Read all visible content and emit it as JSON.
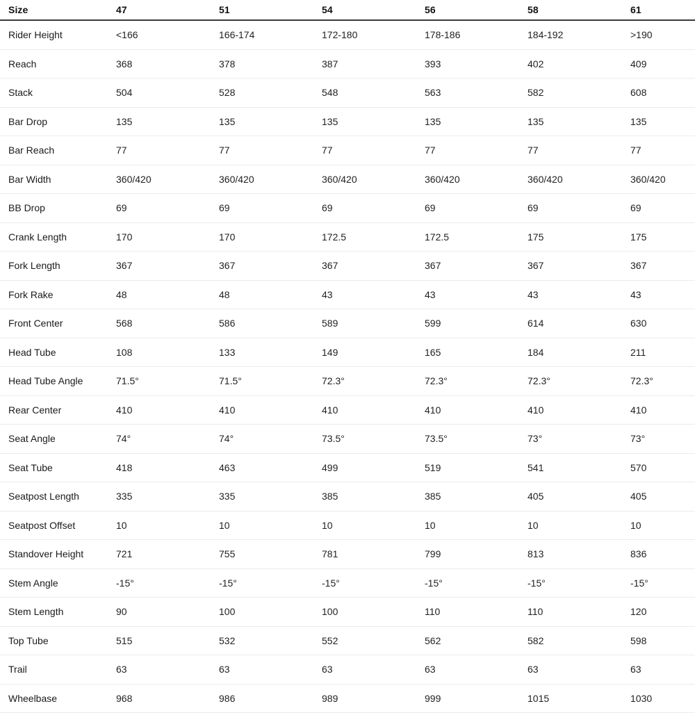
{
  "colors": {
    "background": "#ffffff",
    "text": "#1a1a1a",
    "header_border": "#3b3b3b",
    "row_border": "#ececec"
  },
  "table": {
    "header": {
      "label": "Size",
      "sizes": [
        "47",
        "51",
        "54",
        "56",
        "58",
        "61"
      ]
    },
    "rows": [
      {
        "label": "Rider Height",
        "values": [
          "<166",
          "166-174",
          "172-180",
          "178-186",
          "184-192",
          ">190"
        ]
      },
      {
        "label": "Reach",
        "values": [
          "368",
          "378",
          "387",
          "393",
          "402",
          "409"
        ]
      },
      {
        "label": "Stack",
        "values": [
          "504",
          "528",
          "548",
          "563",
          "582",
          "608"
        ]
      },
      {
        "label": "Bar Drop",
        "values": [
          "135",
          "135",
          "135",
          "135",
          "135",
          "135"
        ]
      },
      {
        "label": "Bar Reach",
        "values": [
          "77",
          "77",
          "77",
          "77",
          "77",
          "77"
        ]
      },
      {
        "label": "Bar Width",
        "values": [
          "360/420",
          "360/420",
          "360/420",
          "360/420",
          "360/420",
          "360/420"
        ]
      },
      {
        "label": "BB Drop",
        "values": [
          "69",
          "69",
          "69",
          "69",
          "69",
          "69"
        ]
      },
      {
        "label": "Crank Length",
        "values": [
          "170",
          "170",
          "172.5",
          "172.5",
          "175",
          "175"
        ]
      },
      {
        "label": "Fork Length",
        "values": [
          "367",
          "367",
          "367",
          "367",
          "367",
          "367"
        ]
      },
      {
        "label": "Fork Rake",
        "values": [
          "48",
          "48",
          "43",
          "43",
          "43",
          "43"
        ]
      },
      {
        "label": "Front Center",
        "values": [
          "568",
          "586",
          "589",
          "599",
          "614",
          "630"
        ]
      },
      {
        "label": "Head Tube",
        "values": [
          "108",
          "133",
          "149",
          "165",
          "184",
          "211"
        ]
      },
      {
        "label": "Head Tube Angle",
        "values": [
          "71.5°",
          "71.5°",
          "72.3°",
          "72.3°",
          "72.3°",
          "72.3°"
        ]
      },
      {
        "label": "Rear Center",
        "values": [
          "410",
          "410",
          "410",
          "410",
          "410",
          "410"
        ]
      },
      {
        "label": "Seat Angle",
        "values": [
          "74°",
          "74°",
          "73.5°",
          "73.5°",
          "73°",
          "73°"
        ]
      },
      {
        "label": "Seat Tube",
        "values": [
          "418",
          "463",
          "499",
          "519",
          "541",
          "570"
        ]
      },
      {
        "label": "Seatpost Length",
        "values": [
          "335",
          "335",
          "385",
          "385",
          "405",
          "405"
        ]
      },
      {
        "label": "Seatpost Offset",
        "values": [
          "10",
          "10",
          "10",
          "10",
          "10",
          "10"
        ]
      },
      {
        "label": "Standover Height",
        "values": [
          "721",
          "755",
          "781",
          "799",
          "813",
          "836"
        ]
      },
      {
        "label": "Stem Angle",
        "values": [
          "-15°",
          "-15°",
          "-15°",
          "-15°",
          "-15°",
          "-15°"
        ]
      },
      {
        "label": "Stem Length",
        "values": [
          "90",
          "100",
          "100",
          "110",
          "110",
          "120"
        ]
      },
      {
        "label": "Top Tube",
        "values": [
          "515",
          "532",
          "552",
          "562",
          "582",
          "598"
        ]
      },
      {
        "label": "Trail",
        "values": [
          "63",
          "63",
          "63",
          "63",
          "63",
          "63"
        ]
      },
      {
        "label": "Wheelbase",
        "values": [
          "968",
          "986",
          "989",
          "999",
          "1015",
          "1030"
        ]
      }
    ]
  }
}
